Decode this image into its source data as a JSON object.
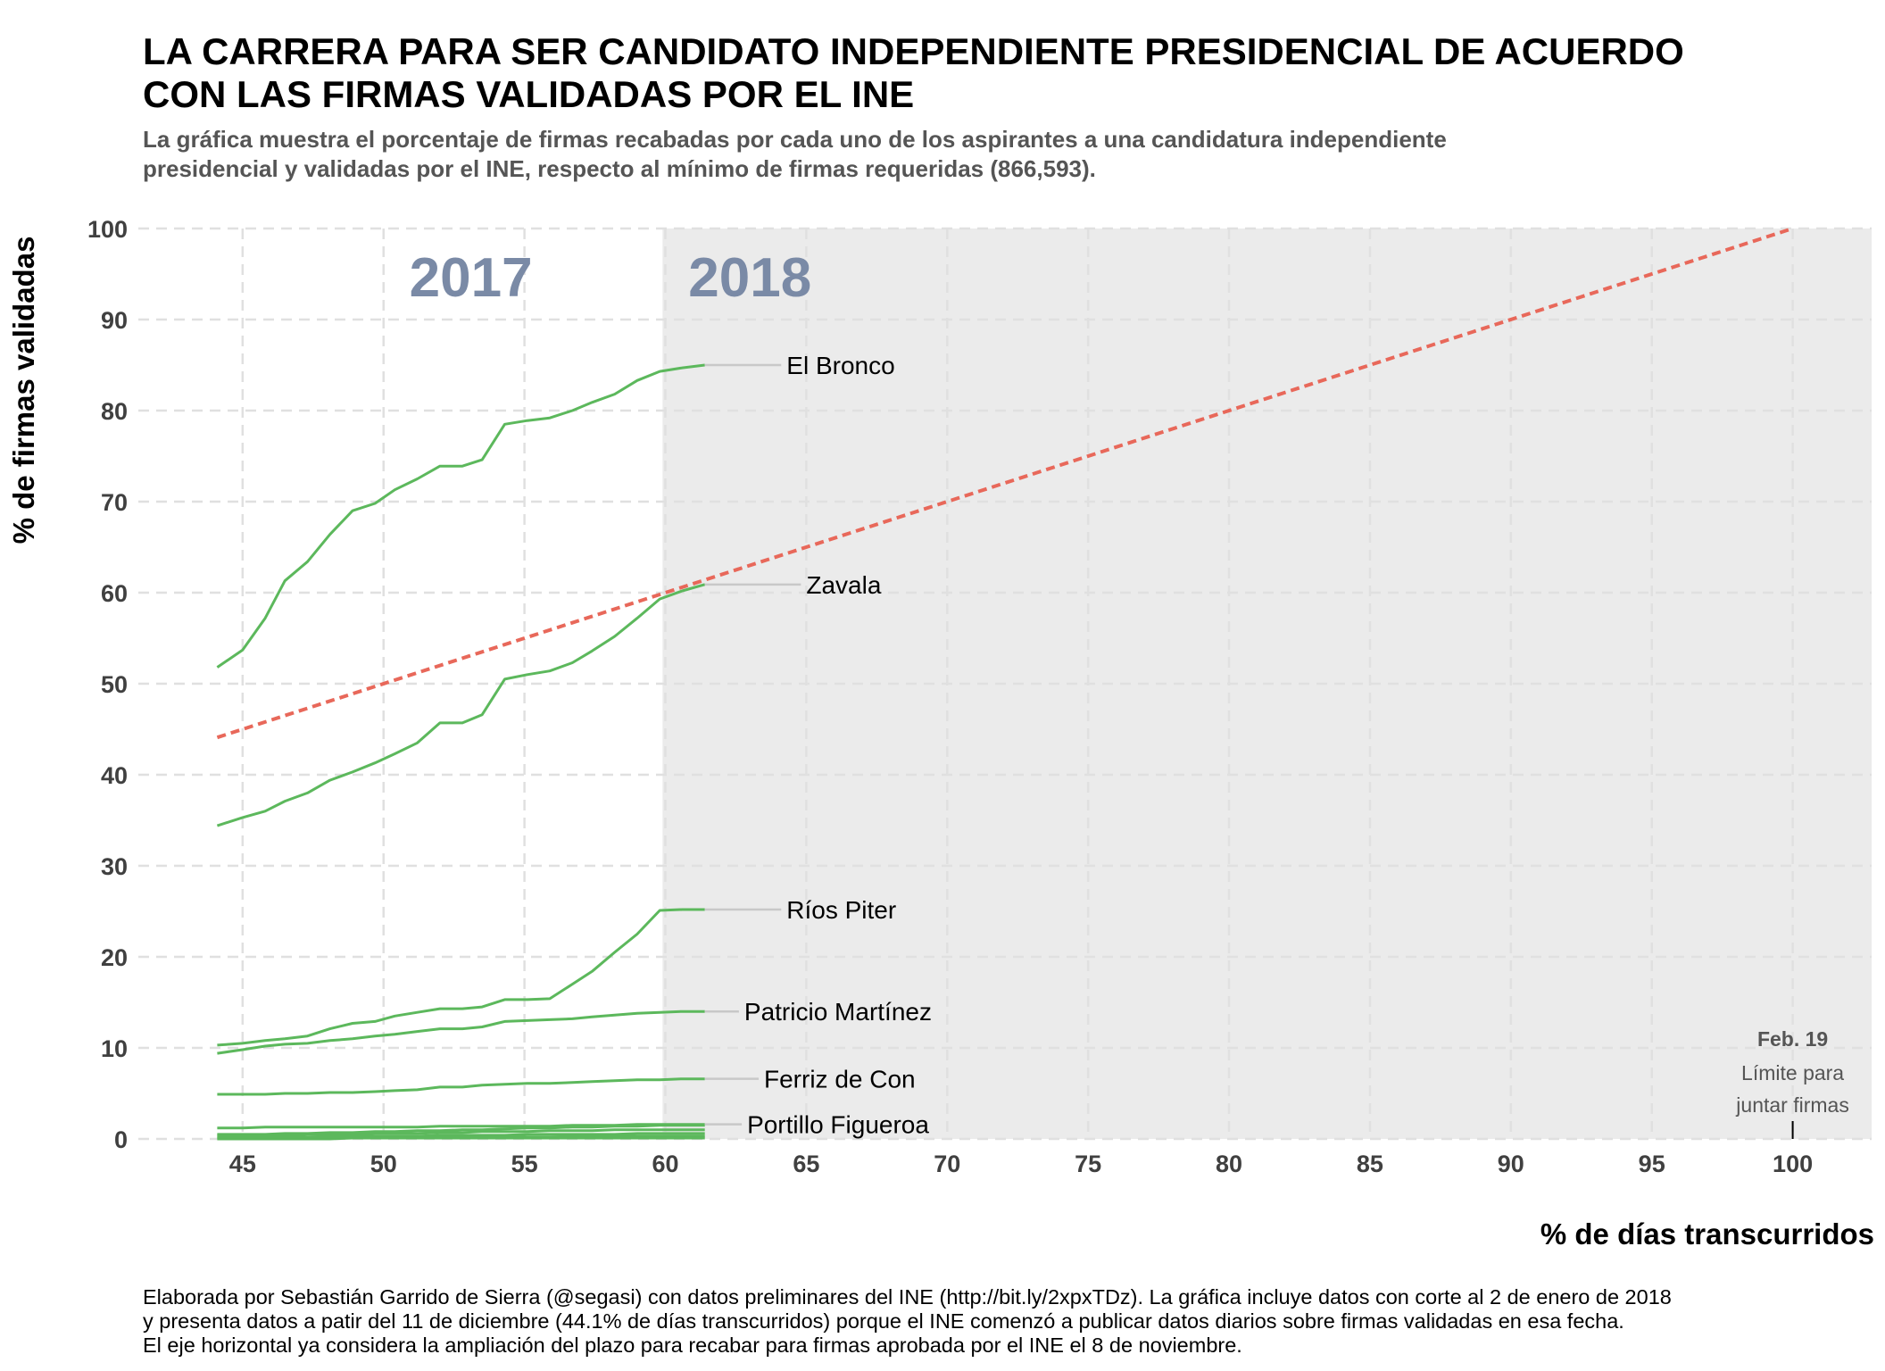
{
  "title_line1": "LA CARRERA PARA SER CANDIDATO INDEPENDIENTE PRESIDENCIAL DE ACUERDO",
  "title_line2": "CON LAS FIRMAS VALIDADAS POR EL INE",
  "subtitle_line1": "La gráfica muestra el porcentaje de firmas recabadas por cada uno de los aspirantes a una candidatura independiente",
  "subtitle_line2": "presidencial y validadas por el INE, respecto al mínimo de firmas requeridas (866,593).",
  "caption_line1": "Elaborada por Sebastián Garrido de Sierra (@segasi) con datos preliminares del INE (http://bit.ly/2xpxTDz). La gráfica incluye datos con corte al 2 de enero de 2018",
  "caption_line2": "y presenta datos a patir del 11 de diciembre (44.1% de días transcurridos) porque el INE comenzó a publicar datos diarios sobre firmas validadas en esa fecha.",
  "caption_line3": "El eje horizontal ya considera la ampliación del plazo para recabar para firmas aprobada por el INE el 8 de noviembre.",
  "colors": {
    "series": "#5cb85c",
    "reference": "#e8685a",
    "shade_2018": "#ebebeb",
    "grid": "#e0e0e0",
    "leader": "#c8c8c8",
    "year_text": "#7a8aa6"
  },
  "chart_data": {
    "type": "line",
    "xlabel": "% de días transcurridos",
    "ylabel": "% de firmas validadas",
    "xlim": [
      41.3,
      102.8
    ],
    "ylim": [
      0,
      100
    ],
    "x_ticks": [
      45,
      50,
      55,
      60,
      65,
      70,
      75,
      80,
      85,
      90,
      95,
      100
    ],
    "y_ticks": [
      0,
      10,
      20,
      30,
      40,
      50,
      60,
      70,
      80,
      90,
      100
    ],
    "grid": true,
    "shaded_region": {
      "from_x": 59.9,
      "to_x": 102.8,
      "label": "2018"
    },
    "unshaded_label": "2017",
    "reference_line": {
      "style": "dashed",
      "points": [
        [
          44.1,
          44.1
        ],
        [
          100,
          100
        ]
      ]
    },
    "annotation": {
      "x": 100,
      "title": "Feb. 19",
      "line1": "Límite para",
      "line2": "juntar firmas"
    },
    "x": [
      44.1,
      45.0,
      45.8,
      46.5,
      47.3,
      48.1,
      48.9,
      49.7,
      50.4,
      51.2,
      52.0,
      52.8,
      53.5,
      54.3,
      55.1,
      55.9,
      56.7,
      57.4,
      58.2,
      59.0,
      59.8,
      60.6,
      61.4
    ],
    "series": [
      {
        "name": "El Bronco",
        "values": [
          51.8,
          53.7,
          57.2,
          61.3,
          63.4,
          66.4,
          69.0,
          69.8,
          71.3,
          72.5,
          73.9,
          73.9,
          74.6,
          78.5,
          78.9,
          79.2,
          80.0,
          80.9,
          81.8,
          83.3,
          84.3,
          84.7,
          85.0
        ]
      },
      {
        "name": "Zavala",
        "values": [
          34.4,
          35.3,
          36.0,
          37.1,
          38.0,
          39.4,
          40.3,
          41.3,
          42.3,
          43.5,
          45.7,
          45.7,
          46.6,
          50.5,
          51.0,
          51.4,
          52.3,
          53.6,
          55.2,
          57.2,
          59.3,
          60.2,
          60.9
        ]
      },
      {
        "name": "Ríos Piter",
        "values": [
          10.3,
          10.5,
          10.8,
          11.0,
          11.3,
          12.1,
          12.7,
          12.9,
          13.5,
          13.9,
          14.3,
          14.3,
          14.5,
          15.3,
          15.3,
          15.4,
          17.0,
          18.4,
          20.5,
          22.5,
          25.1,
          25.2,
          25.2
        ]
      },
      {
        "name": "Patricio Martínez",
        "values": [
          9.4,
          9.8,
          10.2,
          10.4,
          10.5,
          10.8,
          11.0,
          11.3,
          11.5,
          11.8,
          12.1,
          12.1,
          12.3,
          12.9,
          13.0,
          13.1,
          13.2,
          13.4,
          13.6,
          13.8,
          13.9,
          14.0,
          14.0
        ]
      },
      {
        "name": "Ferriz de Con",
        "values": [
          4.9,
          4.9,
          4.9,
          5.0,
          5.0,
          5.1,
          5.1,
          5.2,
          5.3,
          5.4,
          5.7,
          5.7,
          5.9,
          6.0,
          6.1,
          6.1,
          6.2,
          6.3,
          6.4,
          6.5,
          6.5,
          6.6,
          6.6
        ]
      },
      {
        "name": "Portillo Figueroa",
        "values": [
          1.2,
          1.2,
          1.3,
          1.3,
          1.3,
          1.3,
          1.3,
          1.3,
          1.3,
          1.3,
          1.4,
          1.4,
          1.4,
          1.4,
          1.4,
          1.4,
          1.5,
          1.5,
          1.5,
          1.6,
          1.6,
          1.6,
          1.6
        ]
      },
      {
        "values": [
          0.5,
          0.5,
          0.5,
          0.6,
          0.6,
          0.7,
          0.7,
          0.8,
          0.8,
          0.9,
          0.9,
          1.0,
          1.0,
          1.1,
          1.2,
          1.2,
          1.3,
          1.3,
          1.4,
          1.4,
          1.5,
          1.5,
          1.5
        ]
      },
      {
        "values": [
          0.4,
          0.4,
          0.4,
          0.4,
          0.5,
          0.5,
          0.5,
          0.6,
          0.6,
          0.6,
          0.7,
          0.7,
          0.8,
          0.8,
          0.8,
          0.9,
          0.9,
          0.9,
          1.0,
          1.0,
          1.0,
          1.0,
          1.0
        ]
      },
      {
        "values": [
          0.2,
          0.2,
          0.2,
          0.2,
          0.2,
          0.3,
          0.3,
          0.3,
          0.3,
          0.3,
          0.4,
          0.4,
          0.4,
          0.4,
          0.5,
          0.5,
          0.5,
          0.5,
          0.5,
          0.6,
          0.6,
          0.6,
          0.6
        ]
      },
      {
        "values": [
          0.1,
          0.1,
          0.1,
          0.1,
          0.1,
          0.1,
          0.1,
          0.2,
          0.2,
          0.2,
          0.2,
          0.2,
          0.2,
          0.2,
          0.2,
          0.2,
          0.3,
          0.3,
          0.3,
          0.3,
          0.3,
          0.3,
          0.3
        ]
      },
      {
        "values": [
          0.0,
          0.0,
          0.0,
          0.0,
          0.0,
          0.0,
          0.1,
          0.1,
          0.1,
          0.1,
          0.1,
          0.1,
          0.1,
          0.1,
          0.1,
          0.1,
          0.1,
          0.1,
          0.1,
          0.1,
          0.1,
          0.1,
          0.1
        ]
      }
    ],
    "labels": [
      {
        "text": "El Bronco",
        "series": 0,
        "label_x": 64.3
      },
      {
        "text": "Zavala",
        "series": 1,
        "label_x": 65.0
      },
      {
        "text": "Ríos Piter",
        "series": 2,
        "label_x": 64.3
      },
      {
        "text": "Patricio Martínez",
        "series": 3,
        "label_x": 62.8
      },
      {
        "text": "Ferriz de Con",
        "series": 4,
        "label_x": 63.5
      },
      {
        "text": "Portillo Figueroa",
        "series": 5,
        "label_x": 62.9
      }
    ]
  }
}
